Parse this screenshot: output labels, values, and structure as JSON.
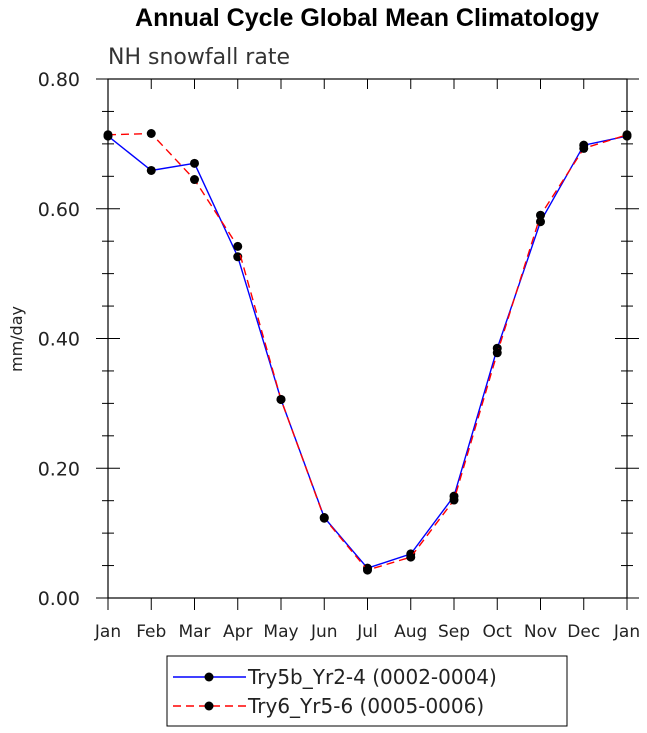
{
  "chart_data": {
    "type": "line",
    "title": "Annual Cycle Global Mean Climatology",
    "subtitle": "NH snowfall rate",
    "xlabel": "",
    "ylabel": "mm/day",
    "ylim": [
      0,
      0.8
    ],
    "yticks": [
      "0.00",
      "0.20",
      "0.40",
      "0.60",
      "0.80"
    ],
    "categories": [
      "Jan",
      "Feb",
      "Mar",
      "Apr",
      "May",
      "Jun",
      "Jul",
      "Aug",
      "Sep",
      "Oct",
      "Nov",
      "Dec",
      "Jan"
    ],
    "series": [
      {
        "name": "Try5b_Yr2-4 (0002-0004)",
        "color": "#0000ff",
        "style": "solid",
        "values": [
          0.712,
          0.659,
          0.67,
          0.526,
          0.306,
          0.124,
          0.046,
          0.068,
          0.157,
          0.385,
          0.58,
          0.698,
          0.712
        ]
      },
      {
        "name": "Try6_Yr5-6 (0005-0006)",
        "color": "#ff0000",
        "style": "dashed",
        "values": [
          0.714,
          0.716,
          0.645,
          0.542,
          0.306,
          0.123,
          0.043,
          0.063,
          0.151,
          0.378,
          0.59,
          0.693,
          0.714
        ]
      }
    ]
  }
}
